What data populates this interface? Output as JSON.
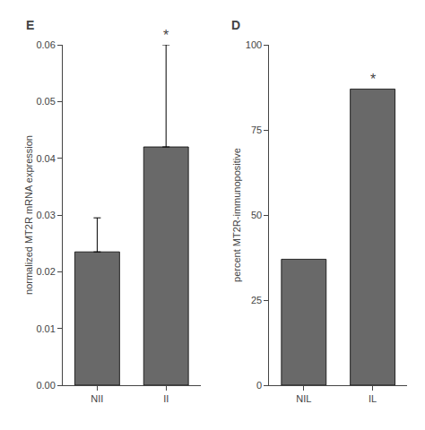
{
  "chart_data": [
    {
      "type": "bar",
      "title": "E",
      "categories": [
        "NII",
        "II"
      ],
      "values": [
        0.0235,
        0.042
      ],
      "errors_upper": [
        0.006,
        0.018
      ],
      "color": "#696969",
      "ylabel": "normalized MT2R mRNA expression",
      "ylim": [
        0.0,
        0.06
      ],
      "yticks": [
        {
          "value": 0.0,
          "label": "0.00"
        },
        0.01,
        0.02,
        0.03,
        0.04,
        0.05,
        0.06
      ],
      "grid": false,
      "annotations": [
        {
          "category": "II",
          "text": "*"
        }
      ]
    },
    {
      "type": "bar",
      "title": "D",
      "categories": [
        "NIL",
        "IL"
      ],
      "values": [
        37,
        87
      ],
      "color": "#696969",
      "ylabel": "percent MT2R-immunopositive",
      "ylim": [
        0,
        100
      ],
      "yticks": [
        0,
        25,
        50,
        75,
        100
      ],
      "grid": false,
      "annotations": [
        {
          "category": "IL",
          "text": "*"
        }
      ]
    }
  ]
}
